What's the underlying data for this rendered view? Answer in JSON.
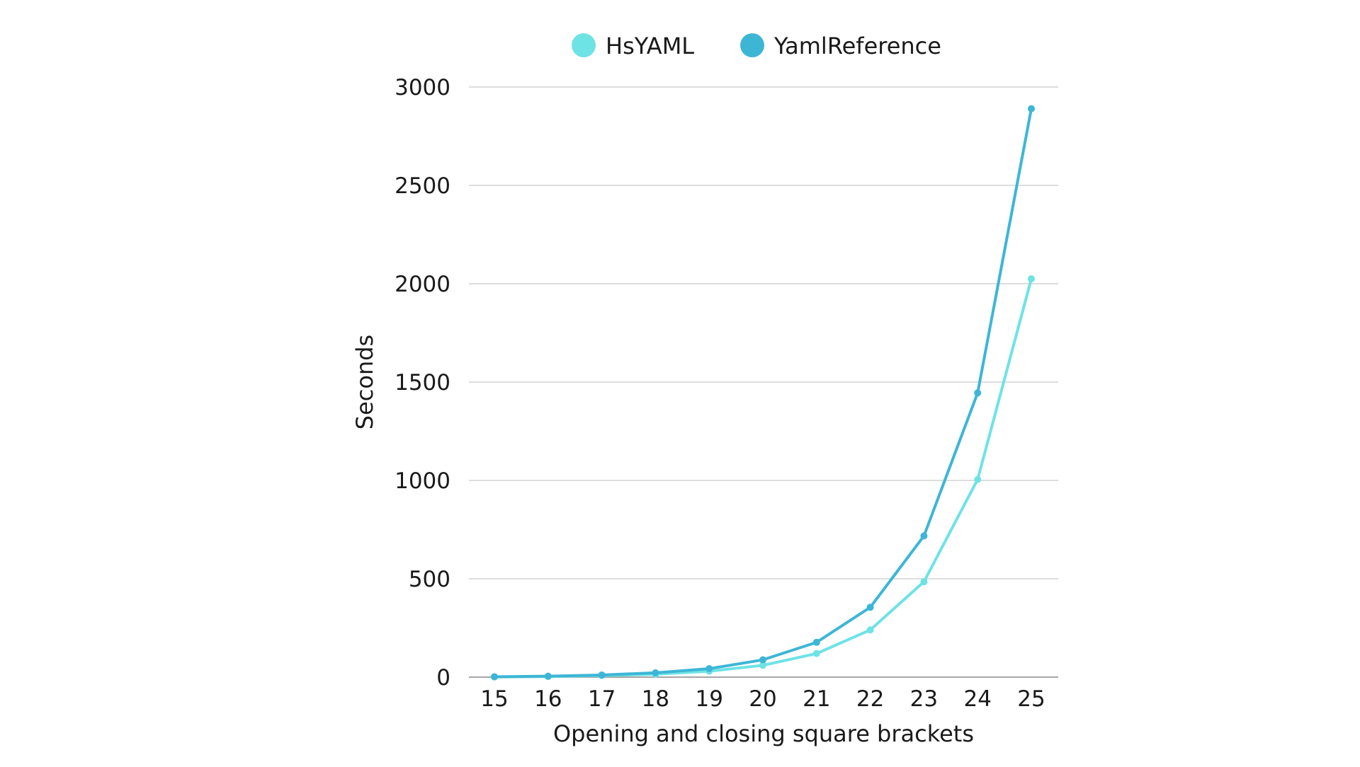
{
  "chart_data": {
    "type": "line",
    "title": "",
    "xlabel": "Opening and closing square brackets",
    "ylabel": "Seconds",
    "x": [
      15,
      16,
      17,
      18,
      19,
      20,
      21,
      22,
      23,
      24,
      25
    ],
    "xlim": [
      15,
      25
    ],
    "ylim": [
      0,
      3000
    ],
    "yticks": [
      0,
      500,
      1000,
      1500,
      2000,
      2500,
      3000
    ],
    "grid": true,
    "legend_position": "top-center",
    "series": [
      {
        "name": "HsYAML",
        "color": "#6ee3e6",
        "values": [
          1,
          3,
          8,
          15,
          30,
          60,
          120,
          240,
          485,
          1005,
          2025
        ]
      },
      {
        "name": "YamlReference",
        "color": "#3db6d6",
        "values": [
          2,
          5,
          11,
          22,
          43,
          88,
          177,
          355,
          718,
          1445,
          2890
        ]
      }
    ]
  }
}
